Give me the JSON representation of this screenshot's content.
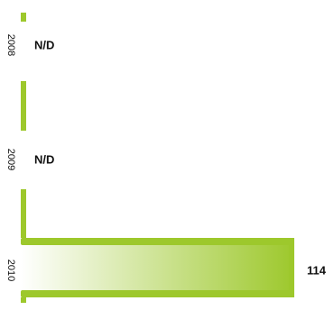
{
  "chart_data": {
    "type": "bar",
    "orientation": "horizontal",
    "categories": [
      "2008",
      "2009",
      "2010"
    ],
    "values": [
      null,
      null,
      114
    ],
    "value_labels": [
      "N/D",
      "N/D",
      "114"
    ],
    "xlim": [
      0,
      114
    ],
    "grid": false,
    "colors": {
      "accent": "#9dc82c",
      "gradient_start": "#ffffff",
      "gradient_end": "#9dc82c",
      "text": "#111111"
    }
  }
}
